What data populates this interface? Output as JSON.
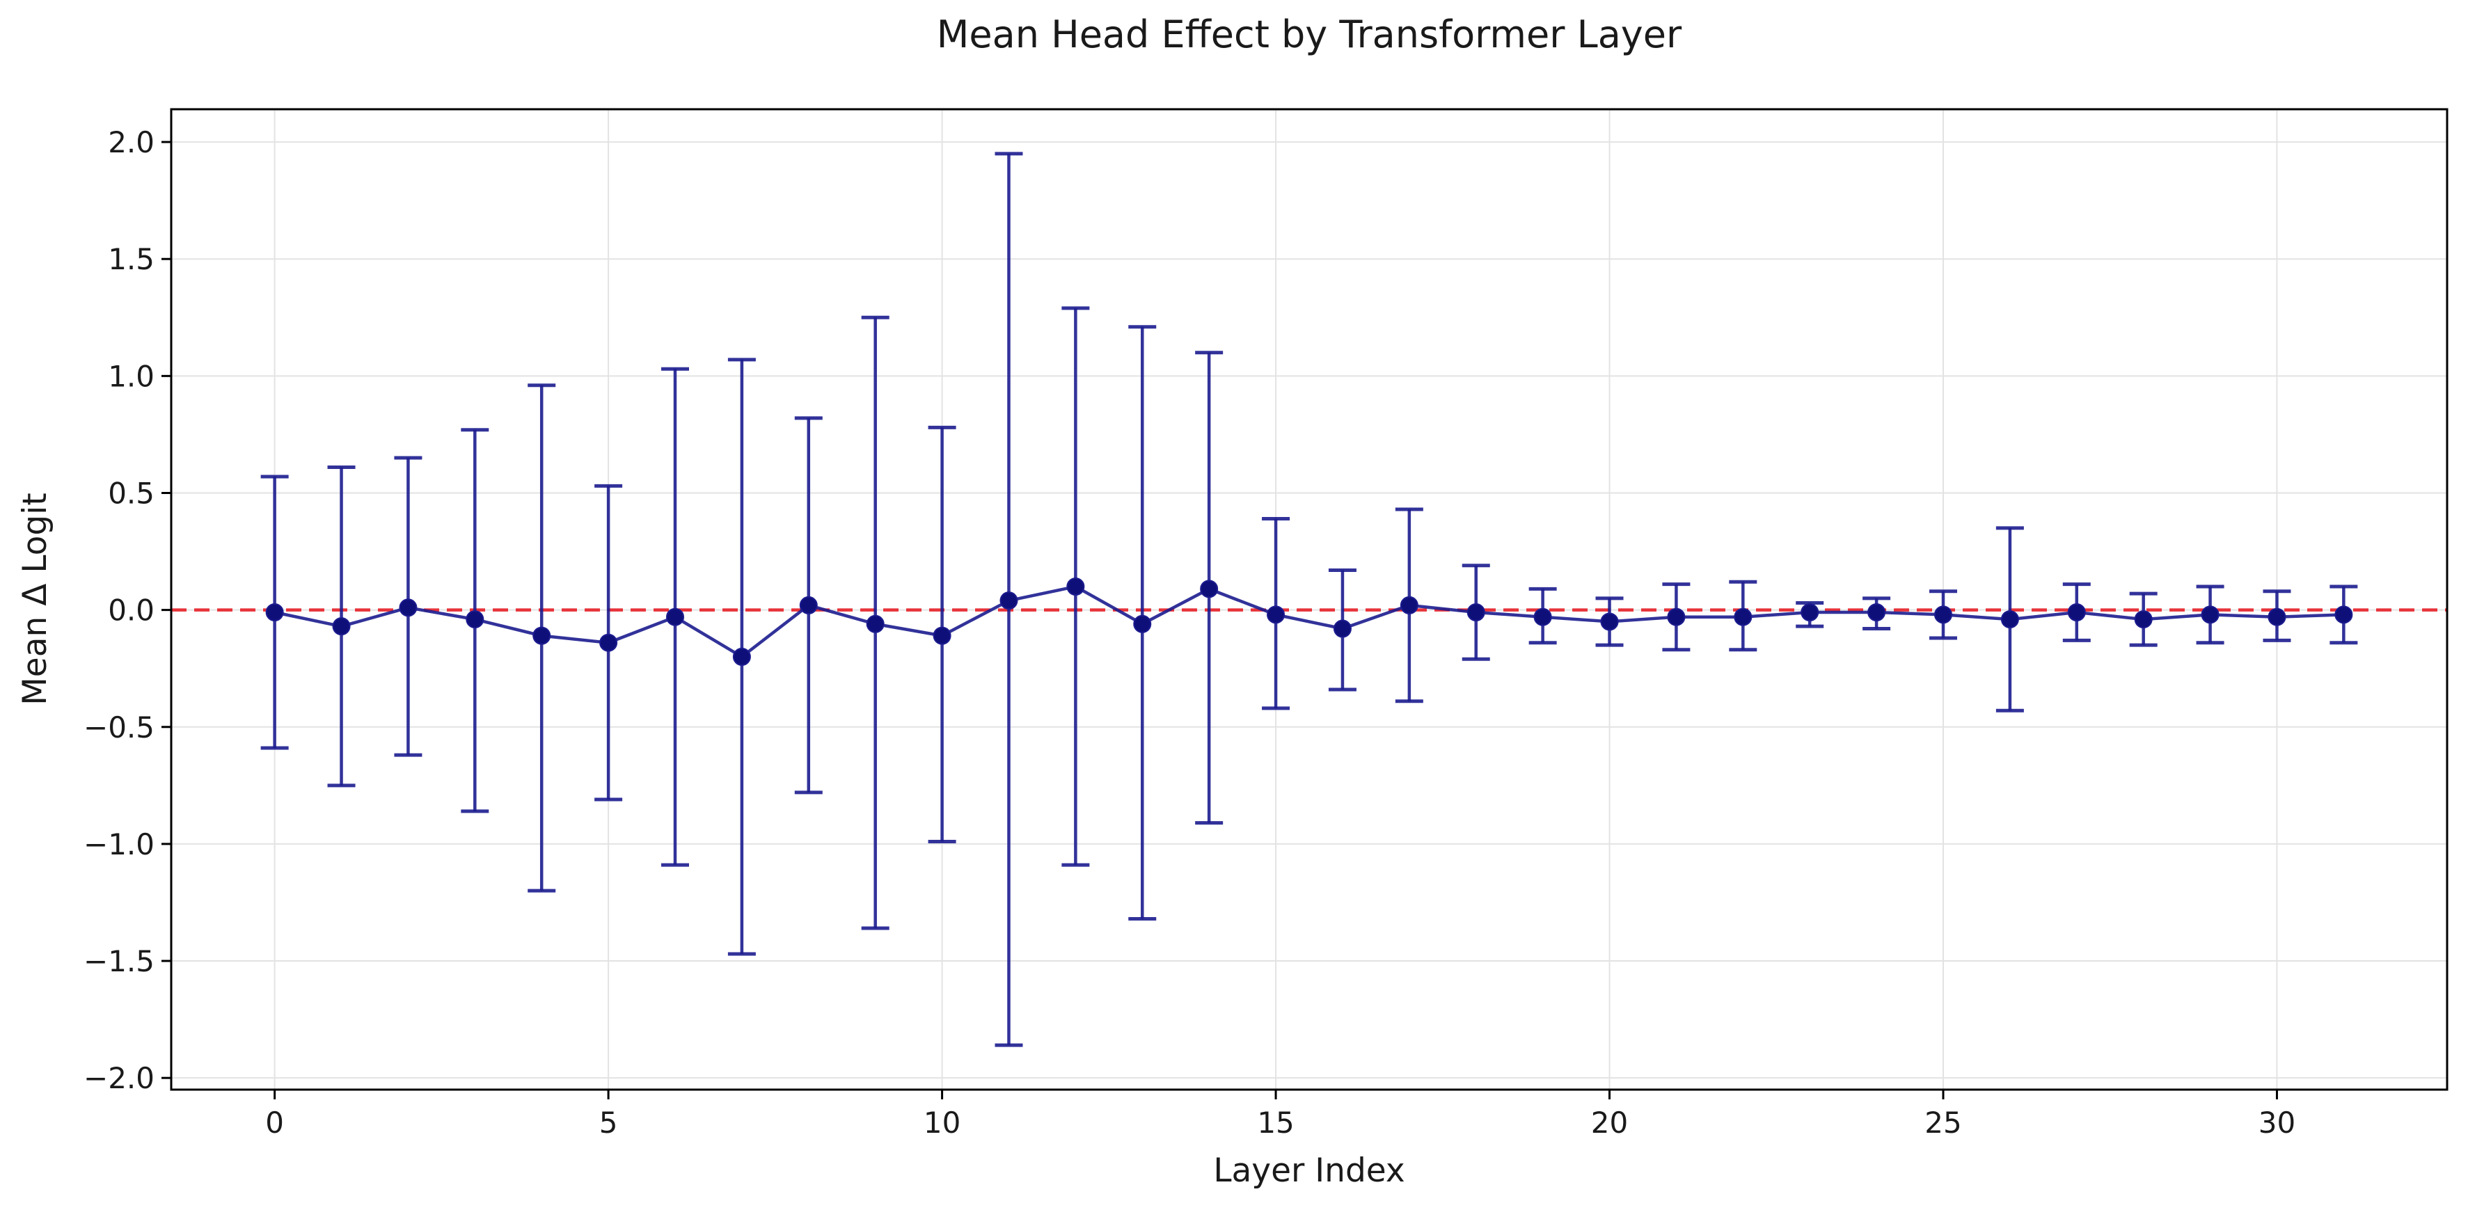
{
  "chart_data": {
    "type": "line",
    "title": "Mean Head Effect by Transformer Layer",
    "xlabel": "Layer Index",
    "ylabel": "Mean Δ Logit",
    "xlim": [
      -1.55,
      32.55
    ],
    "ylim": [
      -2.05,
      2.14
    ],
    "xticks": [
      0,
      5,
      10,
      15,
      20,
      25,
      30
    ],
    "yticks": [
      -2.0,
      -1.5,
      -1.0,
      -0.5,
      0.0,
      0.5,
      1.0,
      1.5,
      2.0
    ],
    "ytick_labels": [
      "−2.0",
      "−1.5",
      "−1.0",
      "−0.5",
      "0.0",
      "0.5",
      "1.0",
      "1.5",
      "2.0"
    ],
    "grid": true,
    "reference_line": {
      "y": 0.0,
      "style": "dashed",
      "color": "#e8333a"
    },
    "series": [
      {
        "color": "#1c1c8f",
        "marker_color": "#0f0f7a",
        "x": [
          0,
          1,
          2,
          3,
          4,
          5,
          6,
          7,
          8,
          9,
          10,
          11,
          12,
          13,
          14,
          15,
          16,
          17,
          18,
          19,
          20,
          21,
          22,
          23,
          24,
          25,
          26,
          27,
          28,
          29,
          30,
          31
        ],
        "y": [
          -0.01,
          -0.07,
          0.01,
          -0.04,
          -0.11,
          -0.14,
          -0.03,
          -0.2,
          0.02,
          -0.06,
          -0.11,
          0.04,
          0.1,
          -0.06,
          0.09,
          -0.02,
          -0.08,
          0.02,
          -0.01,
          -0.03,
          -0.05,
          -0.03,
          -0.03,
          -0.01,
          -0.01,
          -0.02,
          -0.04,
          -0.01,
          -0.04,
          -0.02,
          -0.03,
          -0.02
        ],
        "err_low": [
          -0.59,
          -0.75,
          -0.62,
          -0.86,
          -1.2,
          -0.81,
          -1.09,
          -1.47,
          -0.78,
          -1.36,
          -0.99,
          -1.86,
          -1.09,
          -1.32,
          -0.91,
          -0.42,
          -0.34,
          -0.39,
          -0.21,
          -0.14,
          -0.15,
          -0.17,
          -0.17,
          -0.07,
          -0.08,
          -0.12,
          -0.43,
          -0.13,
          -0.15,
          -0.14,
          -0.13,
          -0.14
        ],
        "err_high": [
          0.57,
          0.61,
          0.65,
          0.77,
          0.96,
          0.53,
          1.03,
          1.07,
          0.82,
          1.25,
          0.78,
          1.95,
          1.29,
          1.21,
          1.1,
          0.39,
          0.17,
          0.43,
          0.19,
          0.09,
          0.05,
          0.11,
          0.12,
          0.03,
          0.05,
          0.08,
          0.35,
          0.11,
          0.07,
          0.1,
          0.08,
          0.1
        ]
      }
    ]
  }
}
